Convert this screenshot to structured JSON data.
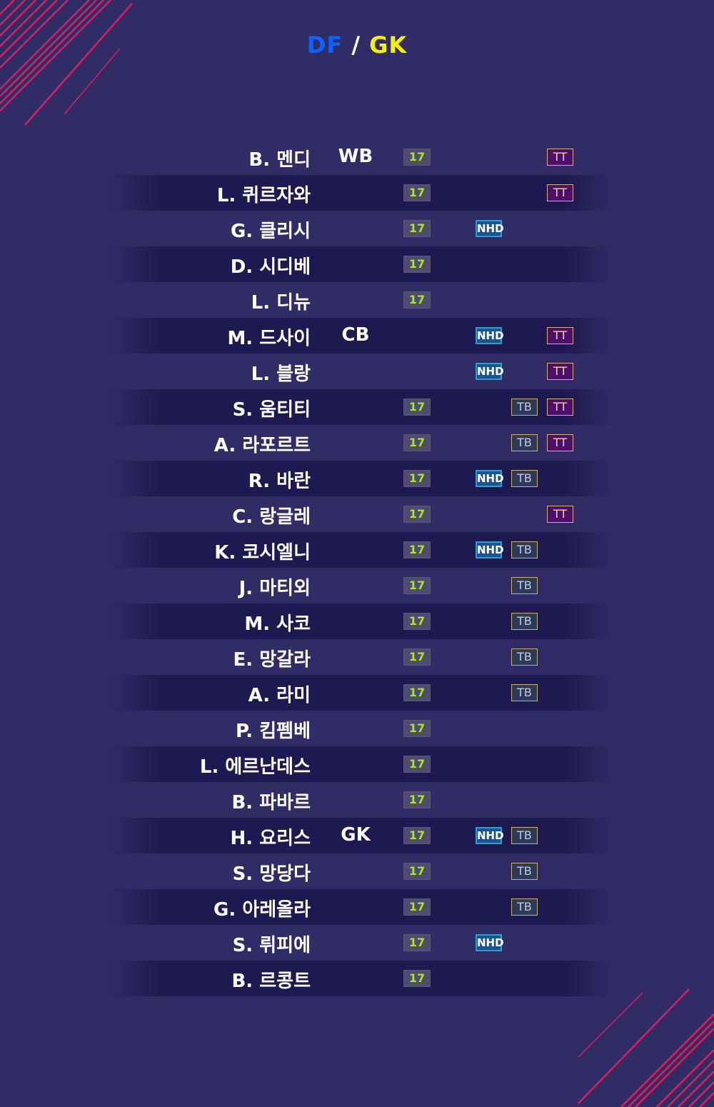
{
  "title": {
    "left": "DF",
    "sep": "/",
    "right": "GK"
  },
  "colors": {
    "df": "#0a64ff",
    "gk": "#f2f200",
    "season_badge": "#a6e81a",
    "nhd": "#1d5390",
    "tb": "#c8b070",
    "tt": "#4d0f6a",
    "background": "#322c66"
  },
  "players": [
    {
      "name": "B. 멘디",
      "pos": "WB",
      "s17": "17",
      "nhd": "",
      "tb": "",
      "tt": "TT"
    },
    {
      "name": "L. 퀴르자와",
      "pos": "",
      "s17": "17",
      "nhd": "",
      "tb": "",
      "tt": "TT"
    },
    {
      "name": "G. 클리시",
      "pos": "",
      "s17": "17",
      "nhd": "NHD",
      "tb": "",
      "tt": ""
    },
    {
      "name": "D. 시디베",
      "pos": "",
      "s17": "17",
      "nhd": "",
      "tb": "",
      "tt": ""
    },
    {
      "name": "L. 디뉴",
      "pos": "",
      "s17": "17",
      "nhd": "",
      "tb": "",
      "tt": ""
    },
    {
      "name": "M. 드사이",
      "pos": "CB",
      "s17": "",
      "nhd": "NHD",
      "tb": "",
      "tt": "TT"
    },
    {
      "name": "L. 블랑",
      "pos": "",
      "s17": "",
      "nhd": "NHD",
      "tb": "",
      "tt": "TT"
    },
    {
      "name": "S. 움티티",
      "pos": "",
      "s17": "17",
      "nhd": "",
      "tb": "TB",
      "tt": "TT"
    },
    {
      "name": "A. 라포르트",
      "pos": "",
      "s17": "17",
      "nhd": "",
      "tb": "TB",
      "tt": "TT"
    },
    {
      "name": "R. 바란",
      "pos": "",
      "s17": "17",
      "nhd": "NHD",
      "tb": "TB",
      "tt": ""
    },
    {
      "name": "C. 랑글레",
      "pos": "",
      "s17": "17",
      "nhd": "",
      "tb": "",
      "tt": "TT"
    },
    {
      "name": "K. 코시엘니",
      "pos": "",
      "s17": "17",
      "nhd": "NHD",
      "tb": "TB",
      "tt": ""
    },
    {
      "name": "J. 마티외",
      "pos": "",
      "s17": "17",
      "nhd": "",
      "tb": "TB",
      "tt": ""
    },
    {
      "name": "M. 사코",
      "pos": "",
      "s17": "17",
      "nhd": "",
      "tb": "TB",
      "tt": ""
    },
    {
      "name": "E. 망갈라",
      "pos": "",
      "s17": "17",
      "nhd": "",
      "tb": "TB",
      "tt": ""
    },
    {
      "name": "A. 라미",
      "pos": "",
      "s17": "17",
      "nhd": "",
      "tb": "TB",
      "tt": ""
    },
    {
      "name": "P. 킴펨베",
      "pos": "",
      "s17": "17",
      "nhd": "",
      "tb": "",
      "tt": ""
    },
    {
      "name": "L. 에르난데스",
      "pos": "",
      "s17": "17",
      "nhd": "",
      "tb": "",
      "tt": ""
    },
    {
      "name": "B. 파바르",
      "pos": "",
      "s17": "17",
      "nhd": "",
      "tb": "",
      "tt": ""
    },
    {
      "name": "H. 요리스",
      "pos": "GK",
      "s17": "17",
      "nhd": "NHD",
      "tb": "TB",
      "tt": ""
    },
    {
      "name": "S. 망당다",
      "pos": "",
      "s17": "17",
      "nhd": "",
      "tb": "TB",
      "tt": ""
    },
    {
      "name": "G. 아레올라",
      "pos": "",
      "s17": "17",
      "nhd": "",
      "tb": "TB",
      "tt": ""
    },
    {
      "name": "S. 뤼피에",
      "pos": "",
      "s17": "17",
      "nhd": "NHD",
      "tb": "",
      "tt": ""
    },
    {
      "name": "B. 르콩트",
      "pos": "",
      "s17": "17",
      "nhd": "",
      "tb": "",
      "tt": ""
    }
  ]
}
